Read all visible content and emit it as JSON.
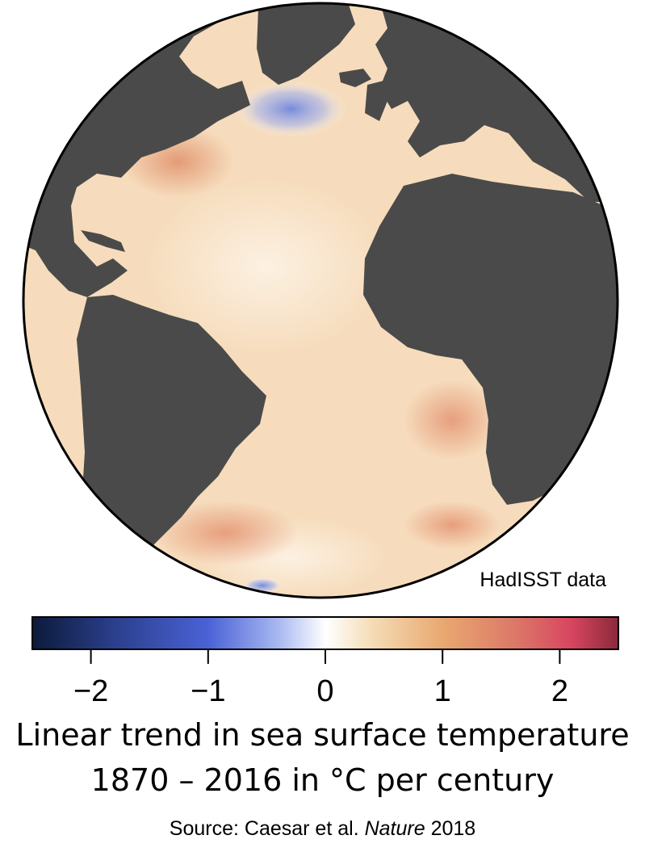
{
  "map": {
    "source_label": "HadISST data",
    "colors": {
      "land": "#4a4a4a",
      "ocean_base": "#f6dcbc",
      "warm_strong": "#e0906a",
      "cool": "#7f95e0",
      "outline": "#000000"
    },
    "land_masses": [
      "north-america",
      "greenland",
      "europe",
      "africa",
      "south-america"
    ]
  },
  "colorbar": {
    "min": -2.5,
    "max": 2.5,
    "ticks": [
      {
        "value": -2,
        "label": "−2"
      },
      {
        "value": -1,
        "label": "−1"
      },
      {
        "value": 0,
        "label": "0"
      },
      {
        "value": 1,
        "label": "1"
      },
      {
        "value": 2,
        "label": "2"
      }
    ],
    "stops": [
      {
        "value": -2.5,
        "color": "#0c1a3a"
      },
      {
        "value": -1.8,
        "color": "#2b3f8c"
      },
      {
        "value": -1.0,
        "color": "#4a62d6"
      },
      {
        "value": -0.4,
        "color": "#a8b8f0"
      },
      {
        "value": 0.0,
        "color": "#ffffff"
      },
      {
        "value": 0.4,
        "color": "#f5dcb6"
      },
      {
        "value": 1.0,
        "color": "#e9a870"
      },
      {
        "value": 1.6,
        "color": "#dc7a68"
      },
      {
        "value": 2.1,
        "color": "#d84560"
      },
      {
        "value": 2.5,
        "color": "#8a2a3a"
      }
    ]
  },
  "caption": {
    "line1": "Linear trend in sea surface temperature",
    "line2": "1870 – 2016 in °C per century"
  },
  "citation": {
    "prefix": "Source: Caesar et al. ",
    "journal": "Nature",
    "year": " 2018"
  }
}
